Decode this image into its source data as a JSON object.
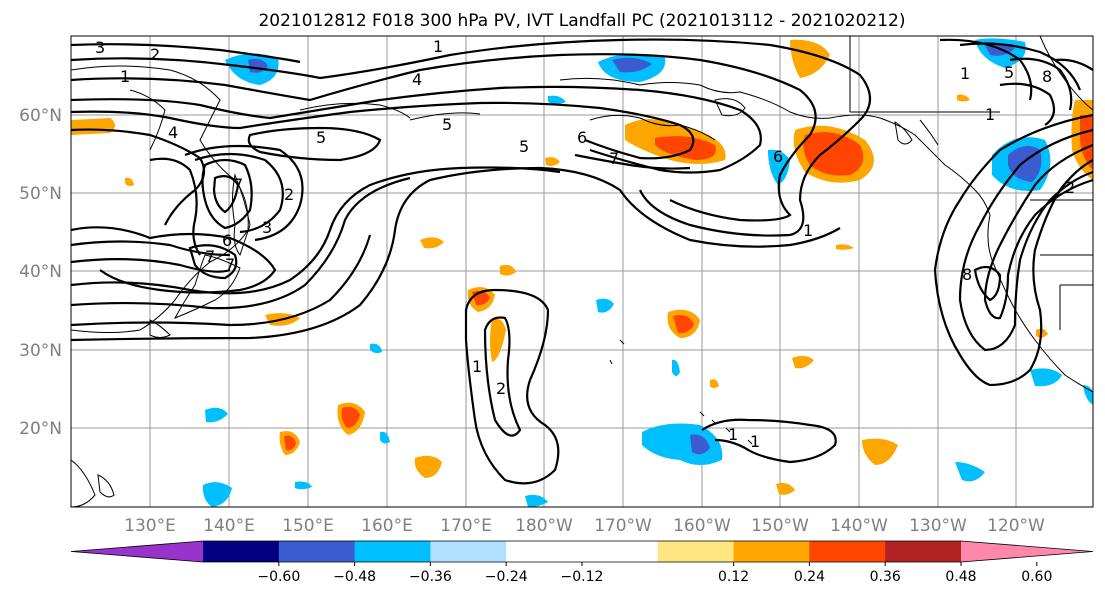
{
  "title": "2021012812 F018 300 hPa PV, IVT Landfall PC (2021013112 - 2021020212)",
  "map": {
    "lat_labels": [
      "60°N",
      "50°N",
      "40°N",
      "30°N",
      "20°N"
    ],
    "lon_labels": [
      "130°E",
      "140°E",
      "150°E",
      "160°E",
      "170°E",
      "180°W",
      "170°W",
      "160°W",
      "150°W",
      "140°W",
      "130°W",
      "120°W"
    ],
    "contour_labels": [
      "3",
      "2",
      "1",
      "1",
      "4",
      "4",
      "5",
      "5",
      "5",
      "6",
      "7",
      "6",
      "1",
      "7",
      "3",
      "2",
      "6",
      "7",
      "7",
      "1",
      "2",
      "1",
      "1",
      "8",
      "5",
      "1",
      "8",
      "2",
      "1"
    ]
  },
  "colorbar": {
    "colors": [
      "#9933cc",
      "#000080",
      "#3b5bd0",
      "#00bfff",
      "#b0e0ff",
      "#ffffff",
      "#ffffff",
      "#ffe680",
      "#ffa500",
      "#ff4500",
      "#b22222",
      "#ff88aa"
    ],
    "tick_labels": [
      "−0.60",
      "−0.48",
      "−0.36",
      "−0.24",
      "−0.12",
      "0.12",
      "0.24",
      "0.36",
      "0.48",
      "0.60"
    ]
  }
}
